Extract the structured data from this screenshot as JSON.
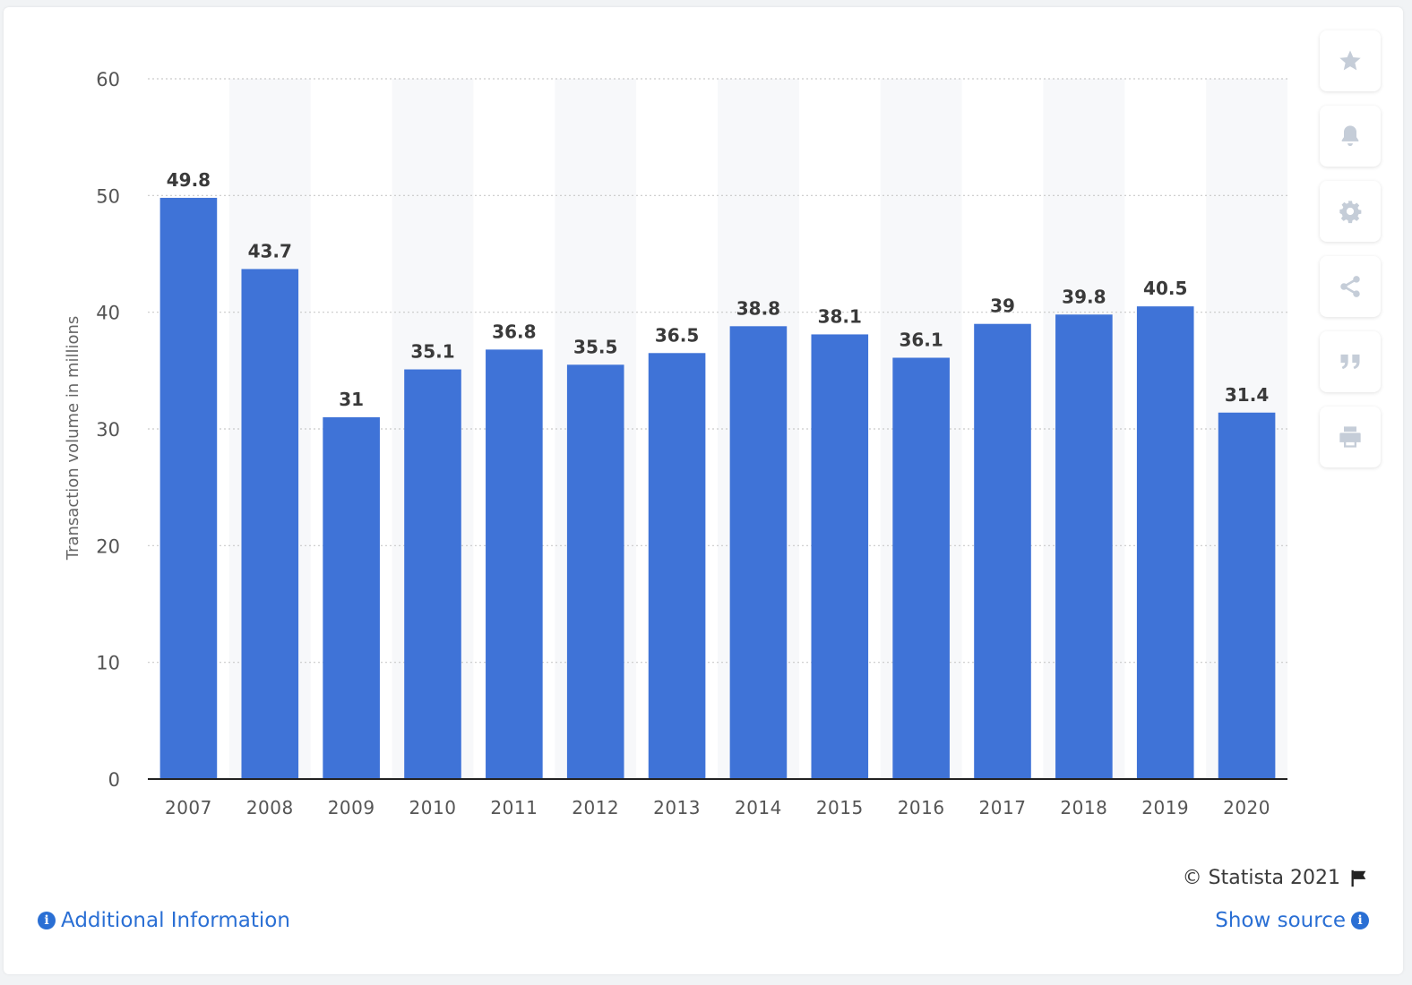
{
  "chart_data": {
    "type": "bar",
    "categories": [
      "2007",
      "2008",
      "2009",
      "2010",
      "2011",
      "2012",
      "2013",
      "2014",
      "2015",
      "2016",
      "2017",
      "2018",
      "2019",
      "2020"
    ],
    "values": [
      49.8,
      43.7,
      31,
      35.1,
      36.8,
      35.5,
      36.5,
      38.8,
      38.1,
      36.1,
      39,
      39.8,
      40.5,
      31.4
    ],
    "value_labels": [
      "49.8",
      "43.7",
      "31",
      "35.1",
      "36.8",
      "35.5",
      "36.5",
      "38.8",
      "38.1",
      "36.1",
      "39",
      "39.8",
      "40.5",
      "31.4"
    ],
    "ylabel": "Transaction volume in millions",
    "ylim": [
      0,
      60
    ],
    "yticks": [
      "0",
      "10",
      "20",
      "30",
      "40",
      "50",
      "60"
    ],
    "grid": true,
    "bar_color": "#3f73d7"
  },
  "toolbar": {
    "icons": [
      "star-icon",
      "bell-icon",
      "gear-icon",
      "share-icon",
      "quote-icon",
      "print-icon"
    ]
  },
  "footer": {
    "copyright": "© Statista 2021",
    "additional_info": "Additional Information",
    "show_source": "Show source"
  }
}
